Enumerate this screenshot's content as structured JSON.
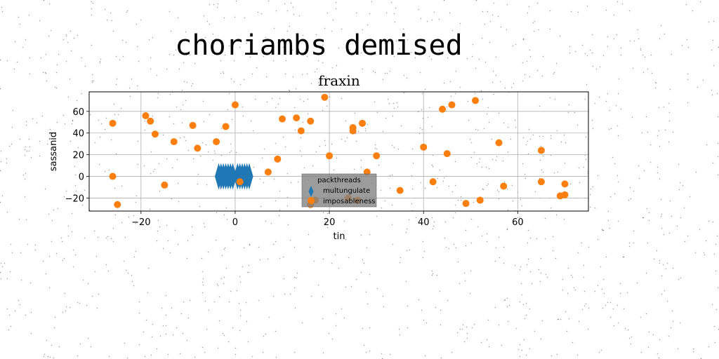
{
  "figure": {
    "suptitle": "choriambs demised"
  },
  "chart_data": {
    "type": "scatter",
    "title": "fraxin",
    "xlabel": "tin",
    "ylabel": "sassanid",
    "xlim": [
      -31,
      75
    ],
    "ylim": [
      -32,
      78
    ],
    "xticks": [
      -20,
      0,
      20,
      40,
      60
    ],
    "yticks": [
      -20,
      0,
      20,
      40,
      60
    ],
    "grid": true,
    "legend": {
      "title": "packthreads",
      "placement": "lower center"
    },
    "series": [
      {
        "name": "multungulate",
        "marker": "thin_diamond",
        "color": "#1f77b4",
        "points": [
          [
            -3.5,
            0
          ],
          [
            -3,
            0
          ],
          [
            -2.5,
            0
          ],
          [
            -2,
            0
          ],
          [
            -1.5,
            0
          ],
          [
            -1,
            0
          ],
          [
            -0.5,
            0
          ],
          [
            0.5,
            0
          ],
          [
            1,
            0
          ],
          [
            1.5,
            0
          ],
          [
            2,
            0
          ],
          [
            2.5,
            0
          ],
          [
            3,
            0
          ]
        ]
      },
      {
        "name": "imposableness",
        "marker": "circle",
        "color": "#ff7f0e",
        "points": [
          [
            -26,
            49
          ],
          [
            -26,
            0
          ],
          [
            -25,
            -26
          ],
          [
            -19,
            56
          ],
          [
            -18,
            51
          ],
          [
            -17,
            39
          ],
          [
            -15,
            -8
          ],
          [
            -13,
            32
          ],
          [
            -9,
            47
          ],
          [
            -8,
            26
          ],
          [
            -4,
            32
          ],
          [
            -2,
            46
          ],
          [
            0,
            66
          ],
          [
            1,
            -5
          ],
          [
            7,
            4
          ],
          [
            9,
            16
          ],
          [
            10,
            53
          ],
          [
            13,
            54
          ],
          [
            14,
            42
          ],
          [
            16,
            51
          ],
          [
            16,
            -26
          ],
          [
            17,
            -22
          ],
          [
            19,
            73
          ],
          [
            20,
            19
          ],
          [
            24,
            -20
          ],
          [
            25,
            45
          ],
          [
            25,
            42
          ],
          [
            26,
            -22
          ],
          [
            27,
            49
          ],
          [
            28,
            4
          ],
          [
            30,
            19
          ],
          [
            35,
            -13
          ],
          [
            40,
            27
          ],
          [
            42,
            -5
          ],
          [
            44,
            62
          ],
          [
            45,
            21
          ],
          [
            46,
            66
          ],
          [
            49,
            -25
          ],
          [
            51,
            70
          ],
          [
            52,
            -22
          ],
          [
            56,
            31
          ],
          [
            57,
            -9
          ],
          [
            65,
            24
          ],
          [
            65,
            -5
          ],
          [
            69,
            -18
          ],
          [
            70,
            -7
          ],
          [
            70,
            -17
          ]
        ]
      }
    ]
  }
}
